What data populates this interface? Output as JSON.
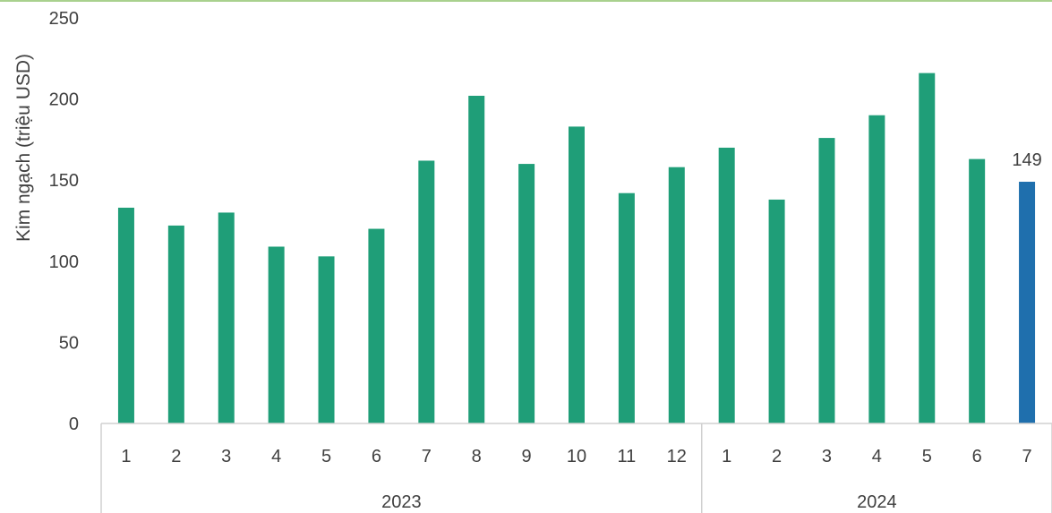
{
  "chart_data": {
    "type": "bar",
    "ylabel": "Kim ngạch (triệu USD)",
    "ylim": [
      0,
      250
    ],
    "yticks": [
      0,
      50,
      100,
      150,
      200,
      250
    ],
    "grid": false,
    "legend": "none",
    "groups": [
      {
        "label": "2023",
        "categories": [
          "1",
          "2",
          "3",
          "4",
          "5",
          "6",
          "7",
          "8",
          "9",
          "10",
          "11",
          "12"
        ]
      },
      {
        "label": "2024",
        "categories": [
          "1",
          "2",
          "3",
          "4",
          "5",
          "6",
          "7"
        ]
      }
    ],
    "series": [
      {
        "values": [
          133,
          122,
          130,
          109,
          103,
          120,
          162,
          202,
          160,
          183,
          142,
          158,
          170,
          138,
          176,
          190,
          216,
          163,
          149
        ]
      }
    ],
    "bar_colors": {
      "default": "#1f9e78",
      "highlight": "#1f6fad"
    },
    "highlight_index": 18,
    "data_labels": [
      {
        "index": 18,
        "text": "149"
      }
    ]
  }
}
